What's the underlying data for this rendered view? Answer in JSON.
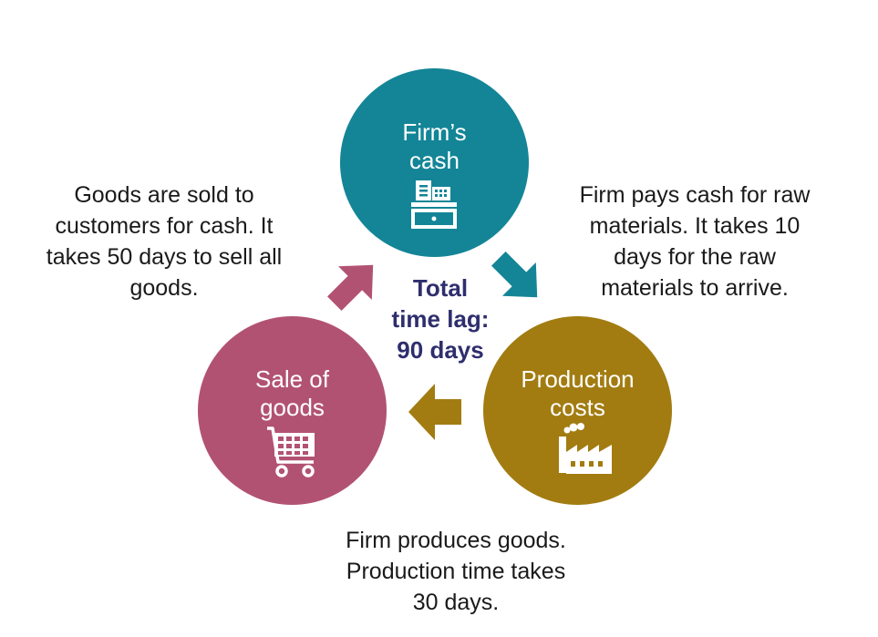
{
  "colors": {
    "cash": "#138597",
    "production": "#a27c11",
    "sale": "#b25272",
    "center_text": "#2e2e6e",
    "caption_text": "#1a1a1a"
  },
  "nodes": {
    "cash": {
      "title_lines": [
        "Firm’s",
        "cash"
      ],
      "icon": "cash-register-icon"
    },
    "production": {
      "title_lines": [
        "Production",
        "costs"
      ],
      "icon": "factory-icon"
    },
    "sale": {
      "title_lines": [
        "Sale of",
        "goods"
      ],
      "icon": "shopping-cart-icon"
    }
  },
  "center": {
    "lines": [
      "Total",
      "time lag:",
      "90 days"
    ]
  },
  "captions": {
    "cash_to_production": [
      "Firm pays cash for raw",
      "materials. It takes 10",
      "days for the raw",
      "materials to arrive."
    ],
    "production_to_sale": [
      "Firm produces goods.",
      "Production time takes",
      "30 days."
    ],
    "sale_to_cash": [
      "Goods are sold to",
      "customers for cash. It",
      "takes 50 days to sell all",
      "goods."
    ]
  }
}
